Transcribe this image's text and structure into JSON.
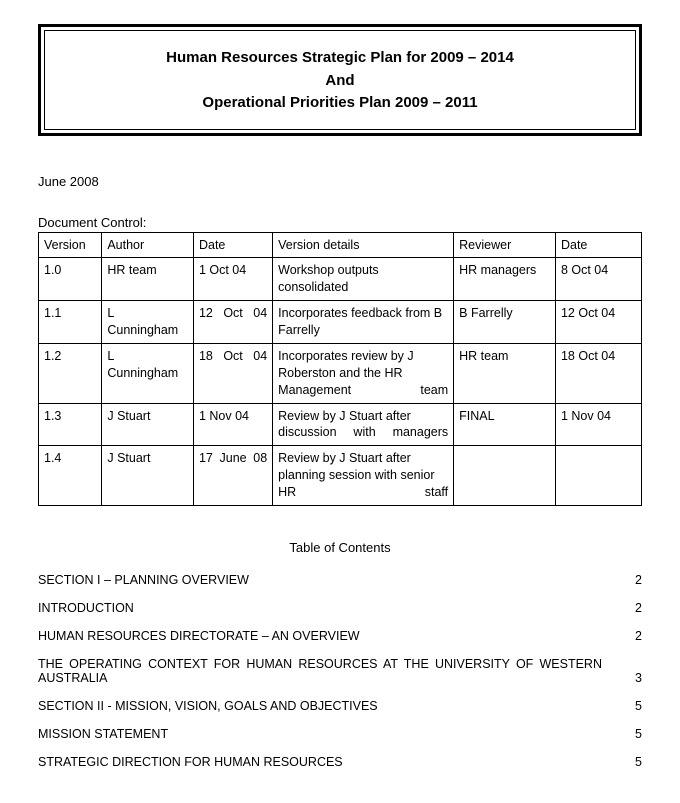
{
  "title": {
    "line1": "Human Resources Strategic Plan for 2009 – 2014",
    "line2": "And",
    "line3": "Operational Priorities Plan 2009 – 2011"
  },
  "date": "June 2008",
  "docControl": {
    "label": "Document Control:",
    "columns": [
      "Version",
      "Author",
      "Date",
      "Version details",
      "Reviewer",
      "Date"
    ],
    "colWidths": [
      "56px",
      "81px",
      "70px",
      "160px",
      "90px",
      "76px"
    ],
    "rows": [
      {
        "version": "1.0",
        "author": "HR team",
        "date": "1 Oct 04",
        "details": "Workshop outputs consolidated",
        "detailsJustify": true,
        "reviewer": "HR managers",
        "rdate": "8 Oct 04",
        "dateJustify": false
      },
      {
        "version": "1.1",
        "author": "L Cunningham",
        "date": "12 Oct 04",
        "details": "Incorporates feedback from B Farrelly",
        "detailsJustify": true,
        "reviewer": "B Farrelly",
        "rdate": "12 Oct 04",
        "dateJustify": true
      },
      {
        "version": "1.2",
        "author": "L Cunningham",
        "date": "18 Oct 04",
        "details": "Incorporates review by J Roberston and the HR Management team",
        "detailsJustify": true,
        "reviewer": "HR team",
        "rdate": "18 Oct 04",
        "dateJustify": true
      },
      {
        "version": "1.3",
        "author": "J Stuart",
        "date": "1 Nov 04",
        "details": "Review by J Stuart after discussion with managers",
        "detailsJustify": true,
        "reviewer": "FINAL",
        "rdate": "1 Nov 04",
        "dateJustify": false
      },
      {
        "version": "1.4",
        "author": "J Stuart",
        "date": "17 June 08",
        "details": "Review by J Stuart after planning session with senior HR staff",
        "detailsJustify": true,
        "reviewer": "",
        "rdate": "",
        "dateJustify": true
      }
    ]
  },
  "toc": {
    "heading": "Table of Contents",
    "entries": [
      {
        "text": "SECTION I – PLANNING OVERVIEW",
        "page": "2",
        "justifyFull": false
      },
      {
        "text": "INTRODUCTION",
        "page": "2",
        "justifyFull": false
      },
      {
        "text": "HUMAN RESOURCES DIRECTORATE – AN OVERVIEW",
        "page": "2",
        "justifyFull": false
      },
      {
        "text": "THE OPERATING CONTEXT FOR HUMAN RESOURCES AT THE UNIVERSITY OF WESTERN AUSTRALIA",
        "page": "3",
        "justifyFull": true
      },
      {
        "text": "SECTION II - MISSION, VISION, GOALS AND OBJECTIVES",
        "page": "5",
        "justifyFull": false
      },
      {
        "text": "MISSION STATEMENT",
        "page": "5",
        "justifyFull": false
      },
      {
        "text": "STRATEGIC DIRECTION FOR HUMAN RESOURCES",
        "page": "5",
        "justifyFull": false
      }
    ]
  },
  "style": {
    "textColor": "#000000",
    "bgColor": "#ffffff",
    "borderColor": "#000000"
  }
}
